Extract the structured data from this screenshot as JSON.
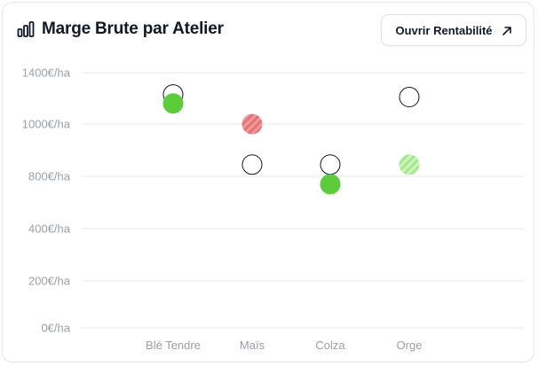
{
  "header": {
    "title": "Marge Brute par Atelier",
    "title_icon": "bar-chart-icon",
    "open_button_label": "Ouvrir Rentabilité",
    "open_button_icon": "arrow-up-right-icon"
  },
  "colors": {
    "green": "#5ccc3d",
    "red": "#e57373",
    "light_green": "#a6e88e",
    "outline": "#111827",
    "grid": "#e8eaee",
    "tick": "#9aa0a8"
  },
  "chart_data": {
    "type": "scatter",
    "categories": [
      "Blé Tendre",
      "Maïs",
      "Colza",
      "Orge"
    ],
    "y_ticks": [
      {
        "label": "0€/ha",
        "value": 0
      },
      {
        "label": "200€/ha",
        "value": 200
      },
      {
        "label": "400€/ha",
        "value": 400
      },
      {
        "label": "800€/ha",
        "value": 800
      },
      {
        "label": "1000€/ha",
        "value": 1000
      },
      {
        "label": "1400€/ha",
        "value": 1400
      }
    ],
    "grid": true,
    "points": [
      {
        "category": "Blé Tendre",
        "value": 1230,
        "style": "outline"
      },
      {
        "category": "Blé Tendre",
        "value": 1160,
        "style": "filled-green"
      },
      {
        "category": "Maïs",
        "value": 1000,
        "style": "hatched-red"
      },
      {
        "category": "Maïs",
        "value": 845,
        "style": "outline"
      },
      {
        "category": "Colza",
        "value": 845,
        "style": "outline"
      },
      {
        "category": "Colza",
        "value": 740,
        "style": "filled-green"
      },
      {
        "category": "Orge",
        "value": 1210,
        "style": "outline"
      },
      {
        "category": "Orge",
        "value": 845,
        "style": "hatched-green"
      }
    ]
  }
}
